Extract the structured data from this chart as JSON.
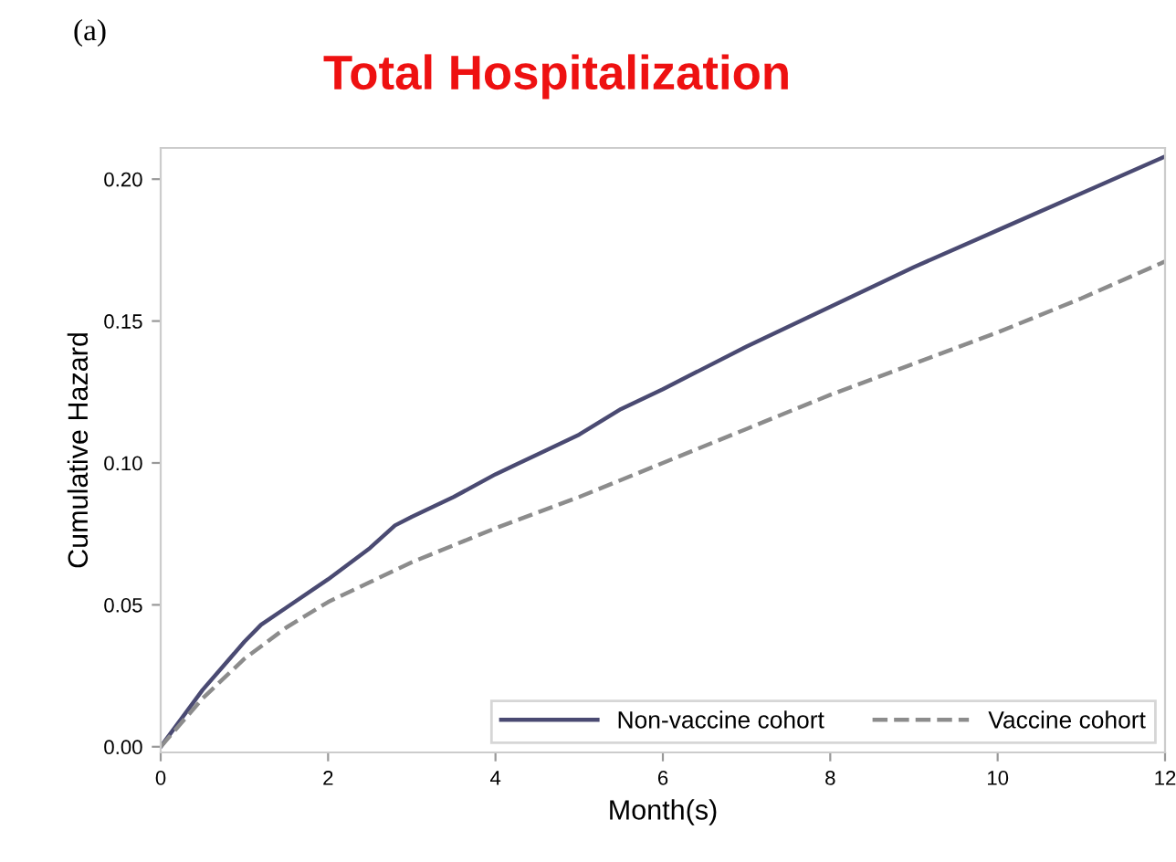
{
  "chart_data": {
    "type": "line",
    "title": "Total Hospitalization",
    "xlabel": "Month(s)",
    "ylabel": "Cumulative Hazard",
    "annotations": [
      "(a)"
    ],
    "xlim": [
      0,
      12
    ],
    "ylim": [
      -0.002,
      0.211
    ],
    "xticks": [
      0,
      2,
      4,
      6,
      8,
      10,
      12
    ],
    "yticks": [
      {
        "value": 0,
        "label": "0.00"
      },
      {
        "value": 0.05,
        "label": "0.05"
      },
      {
        "value": 0.1,
        "label": "0.10"
      },
      {
        "value": 0.15,
        "label": "0.15"
      },
      {
        "value": 0.2,
        "label": "0.20"
      }
    ],
    "grid": false,
    "legend": "bottom right",
    "series": [
      {
        "name": "Non-vaccine cohort",
        "color": "#4a4a72",
        "line_style": "solid",
        "x": [
          0,
          0.5,
          1,
          1.2,
          1.5,
          2,
          2.5,
          2.8,
          3,
          3.5,
          4,
          4.5,
          5,
          5.5,
          6,
          7,
          8,
          9,
          10,
          11,
          12
        ],
        "values": [
          0,
          0.02,
          0.037,
          0.043,
          0.049,
          0.059,
          0.07,
          0.078,
          0.081,
          0.088,
          0.096,
          0.103,
          0.11,
          0.119,
          0.126,
          0.141,
          0.155,
          0.169,
          0.182,
          0.195,
          0.208
        ]
      },
      {
        "name": "Vaccine cohort",
        "color": "#8c8c8c",
        "line_style": "dashed",
        "x": [
          0,
          0.5,
          1,
          1.5,
          2,
          2.5,
          3,
          4,
          5,
          6,
          7,
          8,
          9,
          10,
          11,
          12
        ],
        "values": [
          0,
          0.017,
          0.031,
          0.042,
          0.051,
          0.058,
          0.065,
          0.077,
          0.088,
          0.1,
          0.112,
          0.124,
          0.135,
          0.146,
          0.158,
          0.171
        ]
      }
    ]
  }
}
